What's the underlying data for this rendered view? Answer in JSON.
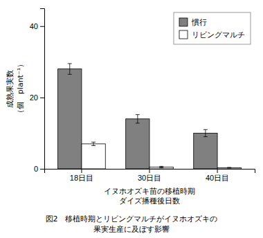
{
  "chart_data": {
    "type": "bar",
    "title": "図2　移植時期とリビングマルチがイヌホオズキの\n果実生産に及ぼす影響",
    "xlabel": "イヌホオズキ苗の移植時期\nダイズ播種後日数",
    "ylabel": "成熟果実数\n（個　plant⁻¹）",
    "categories": [
      "18日目",
      "30日目",
      "40日目"
    ],
    "series": [
      {
        "name": "慣行",
        "color": "#808080",
        "values": [
          28,
          14,
          10
        ],
        "errors": [
          1.5,
          1.2,
          1.0
        ]
      },
      {
        "name": "リビングマルチ",
        "color": "#ffffff",
        "values": [
          7,
          0.5,
          0.3
        ],
        "errors": [
          0.5,
          0.2,
          0.1
        ]
      }
    ],
    "ylim": [
      0,
      45
    ],
    "yticks": [
      0,
      20,
      40
    ],
    "grid": false,
    "legend": "upper right"
  }
}
